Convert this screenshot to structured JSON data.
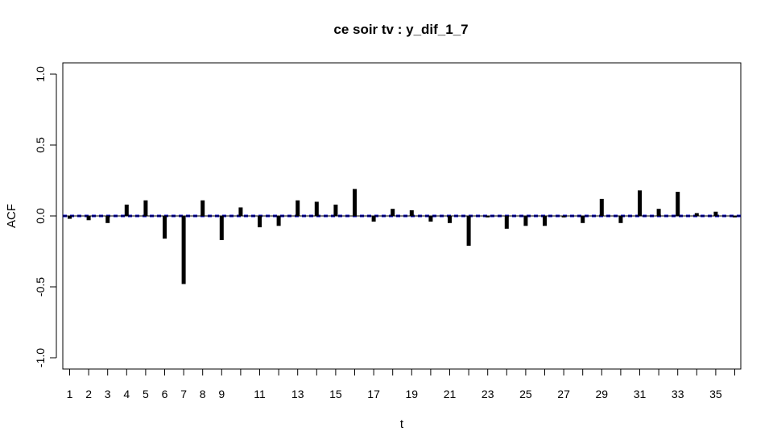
{
  "chart_data": {
    "type": "bar",
    "title": "ce soir tv : y_dif_1_7",
    "xlabel": "t",
    "ylabel": "ACF",
    "ylim": [
      -1.0,
      1.0
    ],
    "xlim": [
      1,
      36
    ],
    "y_ticks": [
      "-1.0",
      "-0.5",
      "0.0",
      "0.5",
      "1.0"
    ],
    "x_tick_labels": [
      "1",
      "2",
      "3",
      "4",
      "5",
      "6",
      "7",
      "8",
      "9",
      "11",
      "13",
      "15",
      "17",
      "19",
      "21",
      "23",
      "25",
      "27",
      "29",
      "31",
      "33",
      "35"
    ],
    "x": [
      1,
      2,
      3,
      4,
      5,
      6,
      7,
      8,
      9,
      10,
      11,
      12,
      13,
      14,
      15,
      16,
      17,
      18,
      19,
      20,
      21,
      22,
      23,
      24,
      25,
      26,
      27,
      28,
      29,
      30,
      31,
      32,
      33,
      34,
      35,
      36
    ],
    "values": [
      -0.02,
      -0.03,
      -0.05,
      0.08,
      0.11,
      -0.16,
      -0.48,
      0.11,
      -0.17,
      0.06,
      -0.08,
      -0.07,
      0.11,
      0.1,
      0.08,
      0.19,
      -0.04,
      0.05,
      0.04,
      -0.04,
      -0.05,
      -0.21,
      -0.01,
      -0.09,
      -0.07,
      -0.07,
      -0.01,
      -0.05,
      0.12,
      -0.05,
      0.18,
      0.05,
      0.17,
      0.02,
      0.03,
      -0.01
    ],
    "confidence_band": [
      -0.004,
      0.004
    ],
    "colors": {
      "bars": "#000000",
      "band": "#0000cc",
      "frame": "#000000"
    }
  }
}
